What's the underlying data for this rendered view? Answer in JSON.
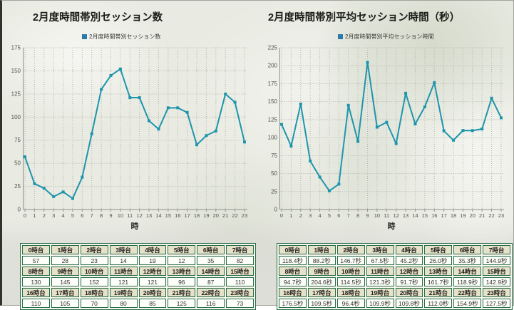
{
  "colors": {
    "line": "#1e95ab",
    "legend_swatch": "#2d7aa8",
    "grid": "#b4b7ac",
    "axis": "#8f928a",
    "table_border": "#266e48",
    "table_header_bg": "#e6e1c9"
  },
  "chart_data": [
    {
      "type": "line",
      "title": "2月度時間帯別セッション数",
      "legend": "2月度時間帯別セッション数",
      "xlabel": "時",
      "ylabel": "",
      "x": [
        0,
        1,
        2,
        3,
        4,
        5,
        6,
        7,
        8,
        9,
        10,
        11,
        12,
        13,
        14,
        15,
        16,
        17,
        18,
        19,
        20,
        21,
        22,
        23
      ],
      "values": [
        57,
        28,
        23,
        14,
        19,
        12,
        35,
        82,
        130,
        145,
        152,
        121,
        121,
        96,
        87,
        110,
        110,
        105,
        70,
        80,
        85,
        125,
        116,
        73
      ],
      "ylim": [
        0,
        175
      ],
      "ystep": 25,
      "yticks": [
        0,
        25,
        50,
        75,
        100,
        125,
        150,
        175
      ],
      "grid": true,
      "legend_position": "top-left"
    },
    {
      "type": "line",
      "title": "2月度時間帯別平均セッション時間（秒）",
      "legend": "2月度時間帯別平均セッション時間",
      "xlabel": "時",
      "ylabel": "",
      "x": [
        0,
        1,
        2,
        3,
        4,
        5,
        6,
        7,
        8,
        9,
        10,
        11,
        12,
        13,
        14,
        15,
        16,
        17,
        18,
        19,
        20,
        21,
        22,
        23
      ],
      "values": [
        118.4,
        88.2,
        146.7,
        67.5,
        45.2,
        26.0,
        35.3,
        144.9,
        94.7,
        204.6,
        114.5,
        121.3,
        91.7,
        161.7,
        118.9,
        142.9,
        176.5,
        109.5,
        96.4,
        109.9,
        109.8,
        112.0,
        154.9,
        127.5
      ],
      "ylim": [
        0,
        225
      ],
      "ystep": 25,
      "yticks": [
        0,
        25,
        50,
        75,
        100,
        125,
        150,
        175,
        200,
        225
      ],
      "grid": true,
      "legend_position": "top-left"
    }
  ],
  "tables": [
    {
      "col_labels": [
        "0時台",
        "1時台",
        "2時台",
        "3時台",
        "4時台",
        "5時台",
        "6時台",
        "7時台",
        "8時台",
        "9時台",
        "10時台",
        "11時台",
        "12時台",
        "13時台",
        "14時台",
        "15時台",
        "16時台",
        "17時台",
        "18時台",
        "19時台",
        "20時台",
        "21時台",
        "22時台",
        "23時台"
      ],
      "cell_values": [
        "57",
        "28",
        "23",
        "14",
        "19",
        "12",
        "35",
        "82",
        "130",
        "145",
        "152",
        "121",
        "121",
        "96",
        "87",
        "110",
        "110",
        "105",
        "70",
        "80",
        "85",
        "125",
        "116",
        "73"
      ]
    },
    {
      "col_labels": [
        "0時台",
        "1時台",
        "2時台",
        "3時台",
        "4時台",
        "5時台",
        "6時台",
        "7時台",
        "8時台",
        "9時台",
        "10時台",
        "11時台",
        "12時台",
        "13時台",
        "14時台",
        "15時台",
        "16時台",
        "17時台",
        "18時台",
        "19時台",
        "20時台",
        "21時台",
        "22時台",
        "23時台"
      ],
      "cell_values": [
        "118.4秒",
        "88.2秒",
        "146.7秒",
        "67.5秒",
        "45.2秒",
        "26.0秒",
        "35.3秒",
        "144.9秒",
        "94.7秒",
        "204.6秒",
        "114.5秒",
        "121.3秒",
        "91.7秒",
        "161.7秒",
        "118.9秒",
        "142.9秒",
        "176.5秒",
        "109.5秒",
        "96.4秒",
        "109.9秒",
        "109.8秒",
        "112.0秒",
        "154.9秒",
        "127.5秒"
      ]
    }
  ]
}
